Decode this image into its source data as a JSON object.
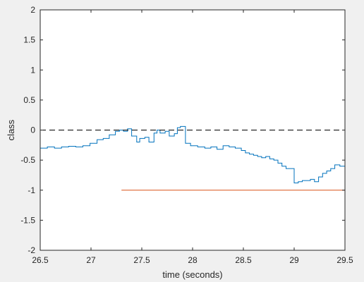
{
  "chart_data": {
    "type": "line",
    "title": "",
    "xlabel": "time (seconds)",
    "ylabel": "class",
    "xlim": [
      26.5,
      29.5
    ],
    "ylim": [
      -2,
      2
    ],
    "xticks": [
      26.5,
      27,
      27.5,
      28,
      28.5,
      29,
      29.5
    ],
    "xtick_labels": [
      "26.5",
      "27",
      "27.5",
      "28",
      "28.5",
      "29",
      "29.5"
    ],
    "yticks": [
      -2,
      -1.5,
      -1,
      -0.5,
      0,
      0.5,
      1,
      1.5,
      2
    ],
    "ytick_labels": [
      "-2",
      "-1.5",
      "-1",
      "-0.5",
      "0",
      "0.5",
      "1",
      "1.5",
      "2"
    ],
    "grid": false,
    "background": "#f0f0f0",
    "plot_background": "#ffffff",
    "series": [
      {
        "color": "#0072bd",
        "style": "solid",
        "step": true,
        "x": [
          26.5,
          26.57,
          26.64,
          26.71,
          26.78,
          26.85,
          26.92,
          26.99,
          27.06,
          27.12,
          27.18,
          27.24,
          27.28,
          27.32,
          27.36,
          27.4,
          27.45,
          27.48,
          27.53,
          27.57,
          27.62,
          27.65,
          27.68,
          27.73,
          27.77,
          27.82,
          27.85,
          27.88,
          27.93,
          27.98,
          28.05,
          28.12,
          28.18,
          28.24,
          28.3,
          28.36,
          28.42,
          28.48,
          28.52,
          28.56,
          28.6,
          28.64,
          28.68,
          28.72,
          28.76,
          28.8,
          28.84,
          28.88,
          28.92,
          28.96,
          29.0,
          29.04,
          29.08,
          29.12,
          29.16,
          29.2,
          29.24,
          29.28,
          29.32,
          29.36,
          29.4,
          29.45,
          29.5
        ],
        "y": [
          -0.3,
          -0.28,
          -0.3,
          -0.28,
          -0.27,
          -0.28,
          -0.26,
          -0.22,
          -0.16,
          -0.14,
          -0.08,
          -0.02,
          0.0,
          -0.02,
          0.02,
          -0.1,
          -0.2,
          -0.14,
          -0.12,
          -0.2,
          -0.05,
          0.0,
          -0.05,
          -0.02,
          -0.1,
          -0.06,
          0.04,
          0.06,
          -0.22,
          -0.26,
          -0.28,
          -0.3,
          -0.28,
          -0.32,
          -0.26,
          -0.28,
          -0.3,
          -0.34,
          -0.38,
          -0.4,
          -0.42,
          -0.44,
          -0.46,
          -0.44,
          -0.48,
          -0.5,
          -0.55,
          -0.6,
          -0.64,
          -0.64,
          -0.88,
          -0.86,
          -0.84,
          -0.84,
          -0.82,
          -0.86,
          -0.78,
          -0.72,
          -0.68,
          -0.64,
          -0.58,
          -0.6,
          -0.6
        ]
      },
      {
        "color": "#d95319",
        "style": "solid",
        "x": [
          27.3,
          29.5
        ],
        "y": [
          -1,
          -1
        ]
      },
      {
        "color": "#000000",
        "style": "dashed",
        "x": [
          26.5,
          29.5
        ],
        "y": [
          0,
          0
        ]
      }
    ]
  }
}
